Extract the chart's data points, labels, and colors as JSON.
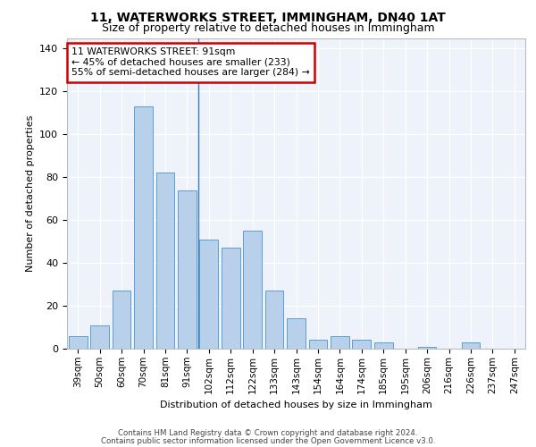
{
  "title": "11, WATERWORKS STREET, IMMINGHAM, DN40 1AT",
  "subtitle": "Size of property relative to detached houses in Immingham",
  "xlabel": "Distribution of detached houses by size in Immingham",
  "ylabel": "Number of detached properties",
  "categories": [
    "39sqm",
    "50sqm",
    "60sqm",
    "70sqm",
    "81sqm",
    "91sqm",
    "102sqm",
    "112sqm",
    "122sqm",
    "133sqm",
    "143sqm",
    "154sqm",
    "164sqm",
    "174sqm",
    "185sqm",
    "195sqm",
    "206sqm",
    "216sqm",
    "226sqm",
    "237sqm",
    "247sqm"
  ],
  "values": [
    6,
    11,
    27,
    113,
    82,
    74,
    51,
    47,
    55,
    27,
    14,
    4,
    6,
    4,
    3,
    0,
    1,
    0,
    3,
    0,
    0
  ],
  "bar_color": "#b8d0ea",
  "bar_edge_color": "#5a9fd4",
  "annotation_box_text": "11 WATERWORKS STREET: 91sqm\n← 45% of detached houses are smaller (233)\n55% of semi-detached houses are larger (284) →",
  "annotation_box_color": "#ffffff",
  "annotation_box_edge_color": "#cc0000",
  "vline_x": 5.5,
  "ylim": [
    0,
    145
  ],
  "yticks": [
    0,
    20,
    40,
    60,
    80,
    100,
    120,
    140
  ],
  "background_color": "#eef2fa",
  "grid_color": "#ffffff",
  "title_fontsize": 10,
  "subtitle_fontsize": 9,
  "ylabel_fontsize": 8,
  "xlabel_fontsize": 8,
  "tick_fontsize": 7.5,
  "footer_line1": "Contains HM Land Registry data © Crown copyright and database right 2024.",
  "footer_line2": "Contains public sector information licensed under the Open Government Licence v3.0."
}
